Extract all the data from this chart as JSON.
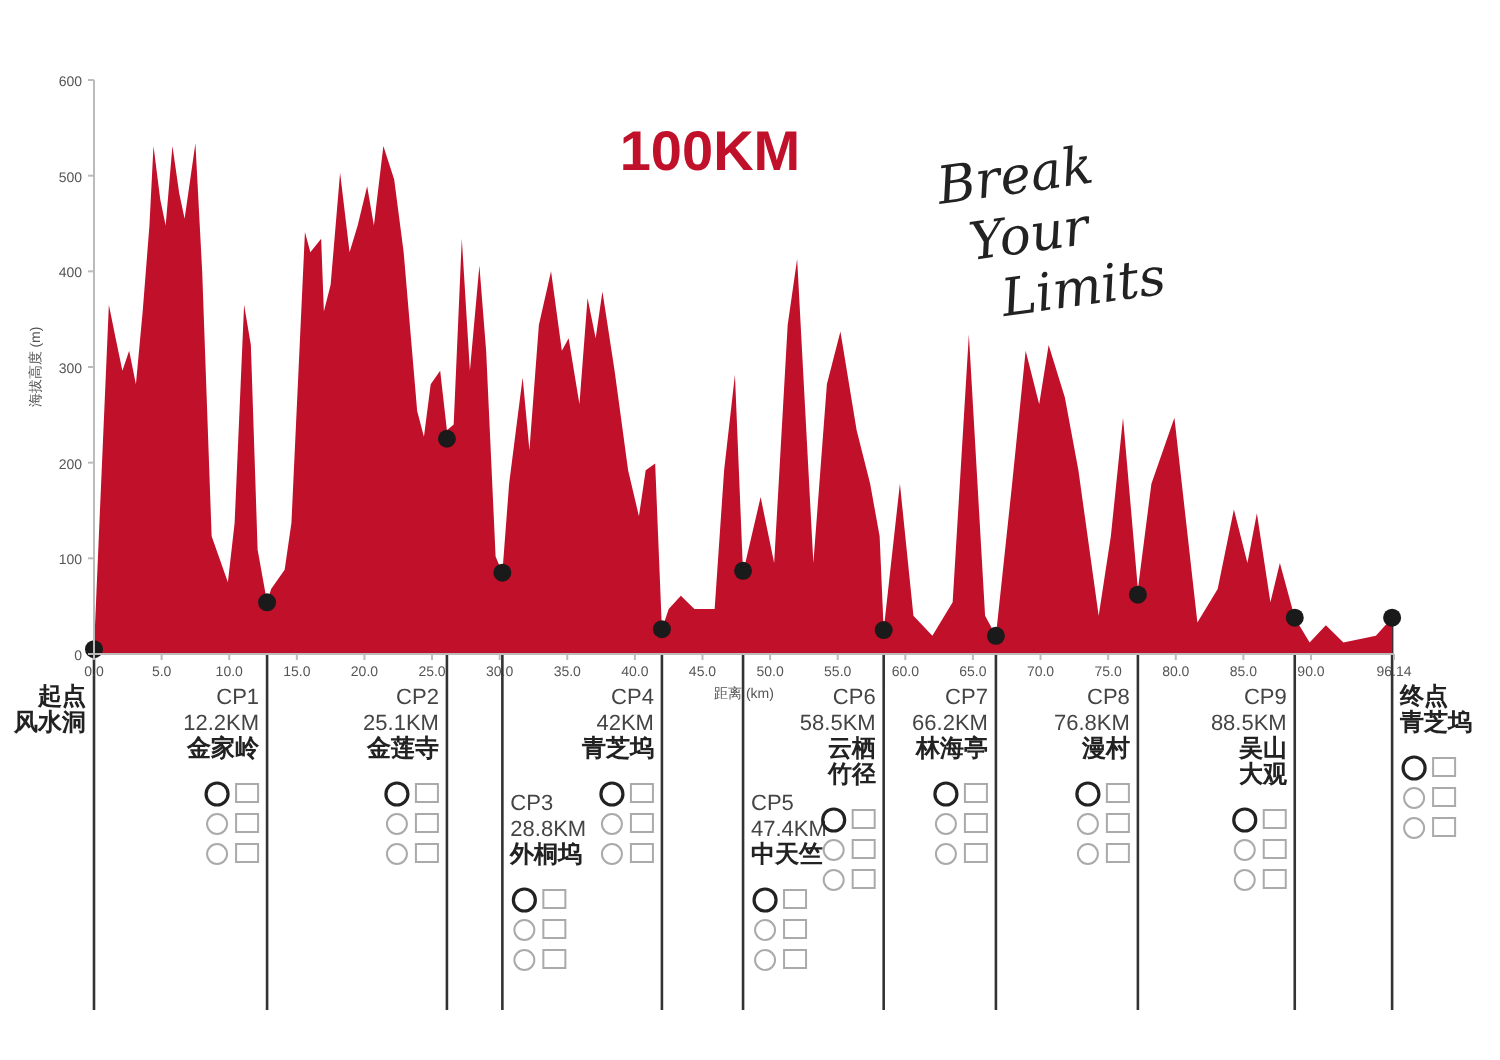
{
  "chart_data": {
    "type": "area",
    "title": "100KM",
    "xlabel": "距离 (km)",
    "ylabel": "海拔高度 (m)",
    "xlim": [
      0,
      96.14
    ],
    "xticks": [
      {
        "value": 0,
        "label": "0.0"
      },
      {
        "value": 5,
        "label": "5.0"
      },
      {
        "value": 10,
        "label": "10.0"
      },
      {
        "value": 15,
        "label": "15.0"
      },
      {
        "value": 20,
        "label": "20.0"
      },
      {
        "value": 25,
        "label": "25.0"
      },
      {
        "value": 30,
        "label": "30.0"
      },
      {
        "value": 35,
        "label": "35.0"
      },
      {
        "value": 40,
        "label": "40.0"
      },
      {
        "value": 45,
        "label": "45.0"
      },
      {
        "value": 50,
        "label": "50.0"
      },
      {
        "value": 55,
        "label": "55.0"
      },
      {
        "value": 60,
        "label": "60.0"
      },
      {
        "value": 65,
        "label": "65.0"
      },
      {
        "value": 70,
        "label": "70.0"
      },
      {
        "value": 75,
        "label": "75.0"
      },
      {
        "value": 80,
        "label": "80.0"
      },
      {
        "value": 85,
        "label": "85.0"
      },
      {
        "value": 90,
        "label": "90.0"
      },
      96.14
    ],
    "ylim": [
      0,
      600
    ],
    "yticks": [
      0,
      100,
      200,
      300,
      400,
      500,
      600
    ],
    "series": [
      {
        "color": "#c0102a",
        "x": [
          0,
          0.4,
          1.1,
          1.6,
          2.1,
          2.6,
          3.1,
          3.6,
          4.1,
          4.4,
          4.9,
          5.3,
          5.8,
          6.3,
          6.7,
          7.5,
          8.0,
          8.7,
          9.9,
          10.4,
          11.1,
          11.6,
          12.1,
          12.8,
          13.1,
          14.1,
          14.6,
          15.6,
          16.0,
          16.8,
          17.0,
          17.5,
          18.2,
          18.9,
          19.5,
          20.2,
          20.7,
          21.4,
          22.2,
          22.9,
          23.9,
          24.4,
          24.9,
          25.6,
          26.1,
          26.6,
          27.2,
          27.8,
          28.5,
          29.0,
          29.7,
          30.2,
          30.7,
          31.7,
          32.2,
          32.9,
          33.8,
          34.6,
          35.1,
          35.9,
          36.5,
          37.1,
          37.6,
          38.5,
          39.5,
          40.3,
          40.8,
          41.5,
          42.0,
          42.5,
          43.4,
          44.4,
          45.9,
          46.6,
          47.4,
          48.0,
          49.3,
          50.3,
          51.3,
          52.0,
          53.2,
          54.2,
          55.2,
          56.4,
          57.4,
          58.1,
          58.4,
          59.6,
          60.6,
          62.0,
          63.5,
          64.7,
          65.9,
          66.7,
          67.9,
          68.9,
          69.9,
          70.6,
          71.8,
          72.8,
          74.3,
          75.2,
          76.1,
          77.2,
          78.2,
          79.9,
          81.6,
          83.1,
          84.3,
          85.3,
          86.0,
          87.0,
          87.7,
          88.8,
          89.9,
          91.1,
          92.4,
          94.8,
          96.0
        ],
        "values": [
          5,
          137,
          365,
          330,
          296,
          317,
          282,
          358,
          448,
          531,
          475,
          448,
          531,
          482,
          455,
          534,
          400,
          123,
          75,
          137,
          365,
          323,
          109,
          54,
          68,
          88,
          137,
          441,
          420,
          434,
          358,
          386,
          503,
          420,
          448,
          489,
          448,
          531,
          496,
          420,
          254,
          227,
          282,
          296,
          234,
          240,
          434,
          296,
          406,
          317,
          102,
          85,
          178,
          289,
          213,
          344,
          400,
          317,
          330,
          261,
          372,
          330,
          379,
          296,
          192,
          144,
          192,
          199,
          26,
          47,
          61,
          47,
          47,
          192,
          292,
          85,
          164,
          95,
          344,
          413,
          95,
          282,
          337,
          234,
          178,
          123,
          25,
          178,
          40,
          19,
          54,
          334,
          40,
          19,
          178,
          317,
          261,
          323,
          268,
          192,
          40,
          123,
          247,
          68,
          178,
          247,
          33,
          68,
          151,
          95,
          147,
          54,
          95,
          38,
          12,
          30,
          12,
          19,
          38
        ]
      },
      {
        "type": "scatter",
        "color": "#1a1a1a",
        "marker": "circle",
        "x": [
          0,
          12.8,
          26.1,
          30.2,
          42.0,
          48.0,
          58.4,
          66.7,
          77.2,
          88.8,
          96.0
        ],
        "values": [
          5,
          54,
          225,
          85,
          26,
          87,
          25,
          19,
          62,
          38,
          38
        ]
      }
    ],
    "annotations": [
      {
        "text": "起点风水洞",
        "x": 0,
        "y": 5
      },
      {
        "text": "CP1\n12.2KM\n金家岭",
        "x": 12.8,
        "y": 54
      },
      {
        "text": "CP2\n25.1KM\n金莲寺",
        "x": 26.1,
        "y": 225
      },
      {
        "text": "CP3\n28.8KM\n外桐坞",
        "x": 30.2,
        "y": 85
      },
      {
        "text": "CP4\n42KM\n青芝坞",
        "x": 42.0,
        "y": 26
      },
      {
        "text": "CP5\n47.4KM\n中天竺",
        "x": 48.0,
        "y": 87
      },
      {
        "text": "CP6\n58.5KM\n云栖竹径",
        "x": 58.4,
        "y": 25
      },
      {
        "text": "CP7\n66.2KM\n林海亭",
        "x": 66.7,
        "y": 19
      },
      {
        "text": "CP8\n76.8KM\n漫村",
        "x": 77.2,
        "y": 62
      },
      {
        "text": "CP9\n88.5KM\n吴山大观",
        "x": 88.8,
        "y": 38
      },
      {
        "text": "终点青芝坞",
        "x": 96.0,
        "y": 38
      },
      "Break\nYour\nLimits"
    ]
  }
}
